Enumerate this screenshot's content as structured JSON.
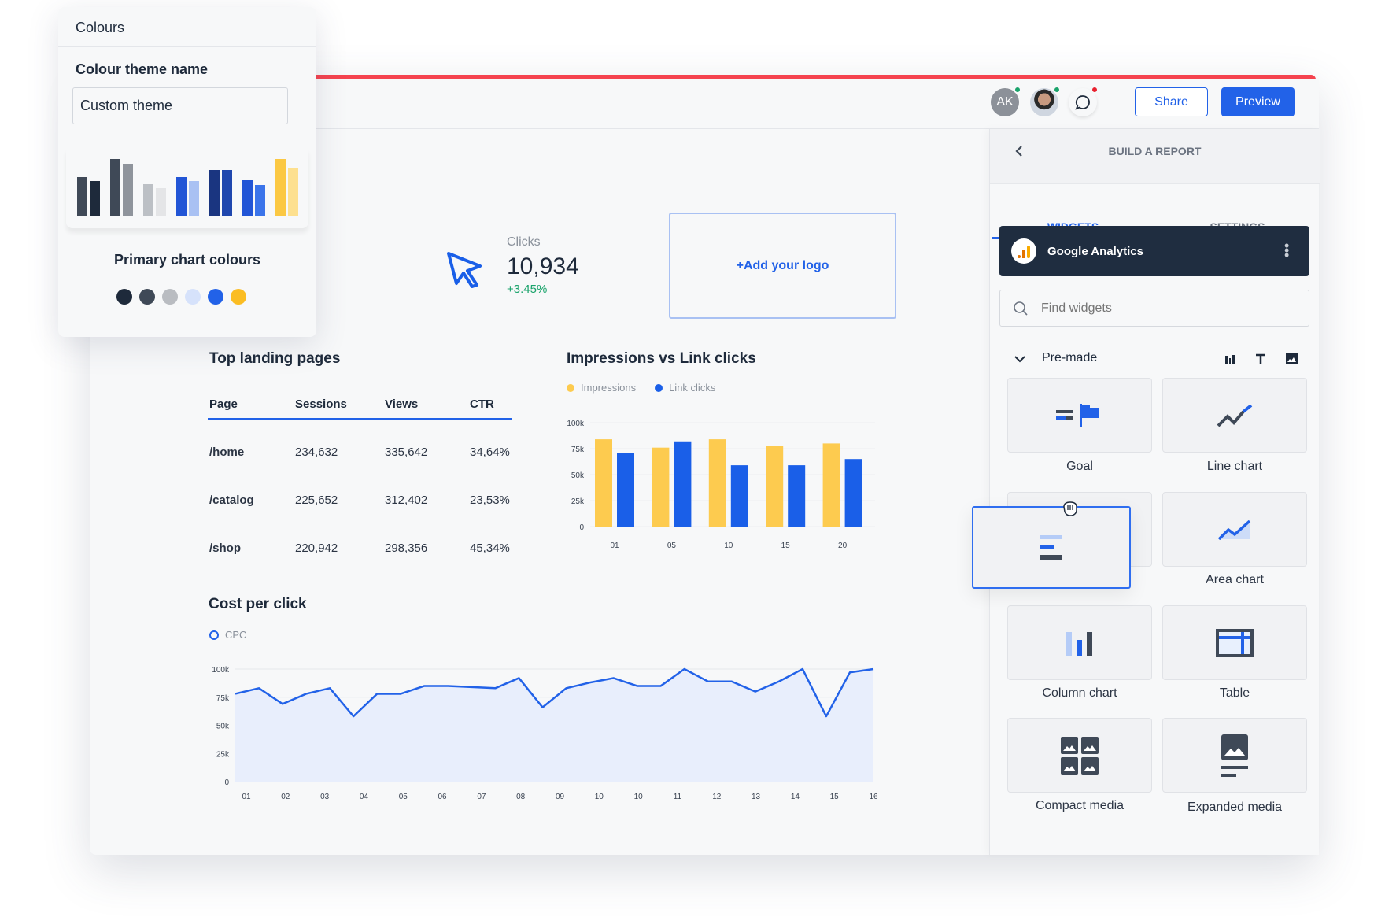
{
  "header": {
    "avatar_initials": "AK",
    "share_label": "Share",
    "preview_label": "Preview"
  },
  "colours_panel": {
    "title": "Colours",
    "theme_name_label": "Colour theme name",
    "theme_name_value": "Custom theme",
    "primary_label": "Primary chart colours",
    "primary_colours": [
      "#1e2a3b",
      "#3f4957",
      "#b9bcc1",
      "#d6e2fb",
      "#2262e8",
      "#fbbd23"
    ],
    "preview_bars": [
      {
        "a": "#3f4957",
        "b": "#1e2a3b",
        "ha": 0.68,
        "hb": 0.61
      },
      {
        "a": "#3f4957",
        "b": "#8f949c",
        "ha": 1.0,
        "hb": 0.92
      },
      {
        "a": "#bcc0c5",
        "b": "#e4e5e7",
        "ha": 0.56,
        "hb": 0.48
      },
      {
        "a": "#2255d6",
        "b": "#a9c1f3",
        "ha": 0.68,
        "hb": 0.61
      },
      {
        "a": "#1a3580",
        "b": "#1f47ae",
        "ha": 0.8,
        "hb": 0.8
      },
      {
        "a": "#2255d6",
        "b": "#3b74ea",
        "ha": 0.62,
        "hb": 0.54
      },
      {
        "a": "#fbc843",
        "b": "#fde08f",
        "ha": 1.0,
        "hb": 0.85
      }
    ]
  },
  "kpi": {
    "label": "Clicks",
    "value": "10,934",
    "change": "+3.45%"
  },
  "logo_box": {
    "label": "+Add your logo"
  },
  "table": {
    "title": "Top landing pages",
    "columns": [
      "Page",
      "Sessions",
      "Views",
      "CTR"
    ],
    "rows": [
      [
        "/home",
        "234,632",
        "335,642",
        "34,64%"
      ],
      [
        "/catalog",
        "225,652",
        "312,402",
        "23,53%"
      ],
      [
        "/shop",
        "220,942",
        "298,356",
        "45,34%"
      ]
    ]
  },
  "chart_data": [
    {
      "type": "bar",
      "title": "Impressions vs Link clicks",
      "categories": [
        "01",
        "05",
        "10",
        "15",
        "20"
      ],
      "series": [
        {
          "name": "Impressions",
          "color": "#fdcb4f",
          "values": [
            84,
            76,
            84,
            78,
            80
          ]
        },
        {
          "name": "Link clicks",
          "color": "#1a5fe8",
          "values": [
            71,
            82,
            59,
            59,
            65
          ]
        }
      ],
      "yticks": [
        "0",
        "25k",
        "50k",
        "75k",
        "100k"
      ],
      "ylim": [
        0,
        100
      ],
      "unit": "k",
      "legend": "top-left",
      "grid": true
    },
    {
      "type": "area",
      "title": "Cost per click",
      "series": [
        {
          "name": "CPC",
          "color": "#2262e8",
          "values": [
            78,
            83,
            69,
            78,
            83,
            58,
            78,
            78,
            85,
            85,
            84,
            83,
            92,
            66,
            83,
            88,
            92,
            85,
            85,
            100,
            89,
            89,
            80,
            89,
            100,
            58,
            97,
            100
          ]
        }
      ],
      "xticks": [
        "01",
        "02",
        "03",
        "04",
        "05",
        "06",
        "07",
        "08",
        "09",
        "10",
        "10",
        "11",
        "12",
        "13",
        "14",
        "15",
        "16"
      ],
      "yticks": [
        "0",
        "25k",
        "50k",
        "75k",
        "100k"
      ],
      "ylim": [
        0,
        100
      ],
      "unit": "k",
      "legend": "top-left",
      "grid": true
    }
  ],
  "panel": {
    "title": "BUILD A REPORT",
    "tabs": [
      "WIDGETS",
      "SETTINGS"
    ],
    "active_tab": "WIDGETS",
    "source": "Google Analytics",
    "search_placeholder": "Find widgets",
    "section": "Pre-made",
    "widgets": [
      "Goal",
      "Line chart",
      "",
      "Area chart",
      "Column chart",
      "Table",
      "Compact media",
      "Expanded media"
    ]
  },
  "colors": {
    "accent": "#2262e8",
    "top_bar": "#f5434f",
    "positive": "#1aa36b",
    "dark": "#1f2d40"
  }
}
